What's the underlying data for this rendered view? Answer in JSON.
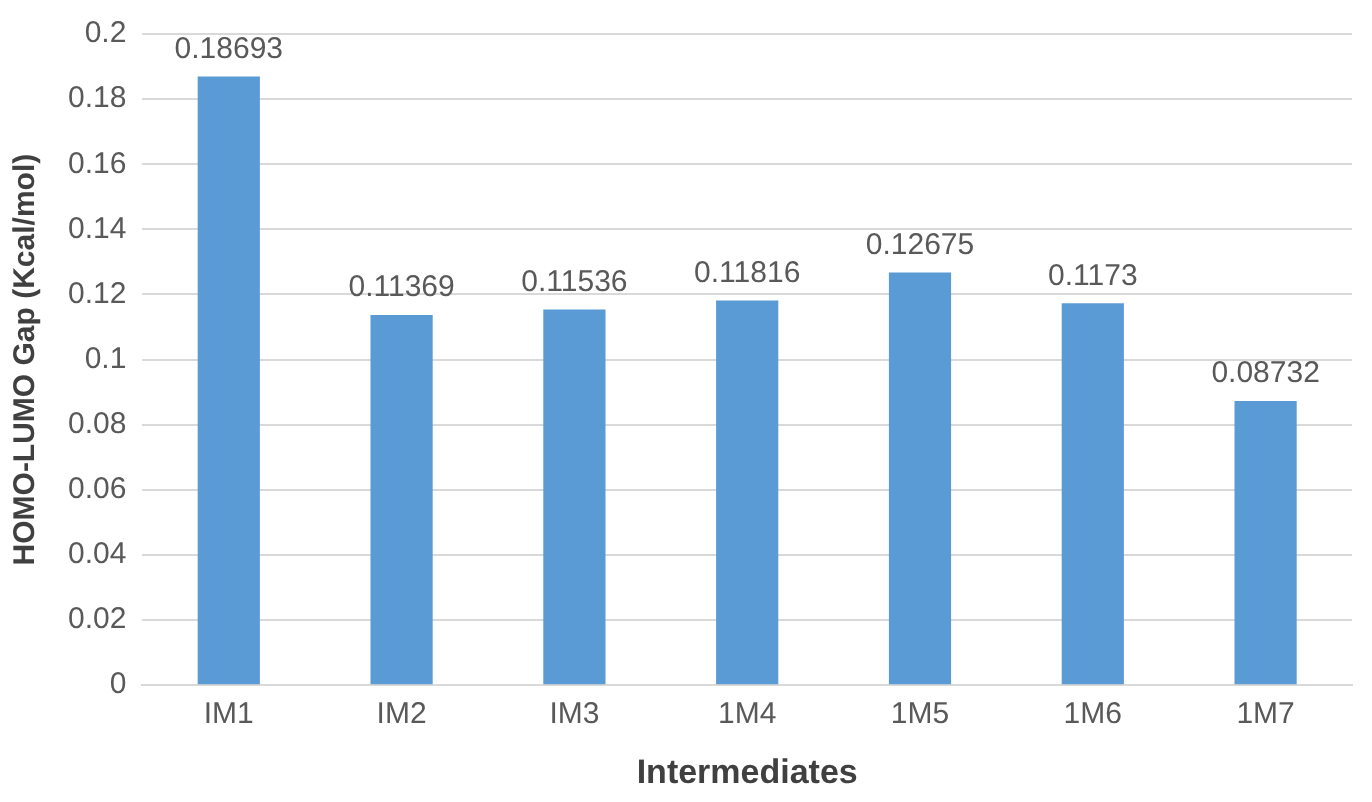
{
  "chart_data": {
    "type": "bar",
    "xlabel": "Intermediates",
    "ylabel": "HOMO-LUMO Gap (Kcal/mol)",
    "categories": [
      "IM1",
      "IM2",
      "IM3",
      "1M4",
      "1M5",
      "1M6",
      "1M7"
    ],
    "values": [
      0.18693,
      0.11369,
      0.11536,
      0.11816,
      0.12675,
      0.1173,
      0.08732
    ],
    "color": "#5b9bd5",
    "ylim": [
      0,
      0.2
    ],
    "yticks": [
      0,
      0.02,
      0.04,
      0.06,
      0.08,
      0.1,
      0.12,
      0.14,
      0.16,
      0.18,
      0.2
    ],
    "grid": "y",
    "data_labels": true
  }
}
